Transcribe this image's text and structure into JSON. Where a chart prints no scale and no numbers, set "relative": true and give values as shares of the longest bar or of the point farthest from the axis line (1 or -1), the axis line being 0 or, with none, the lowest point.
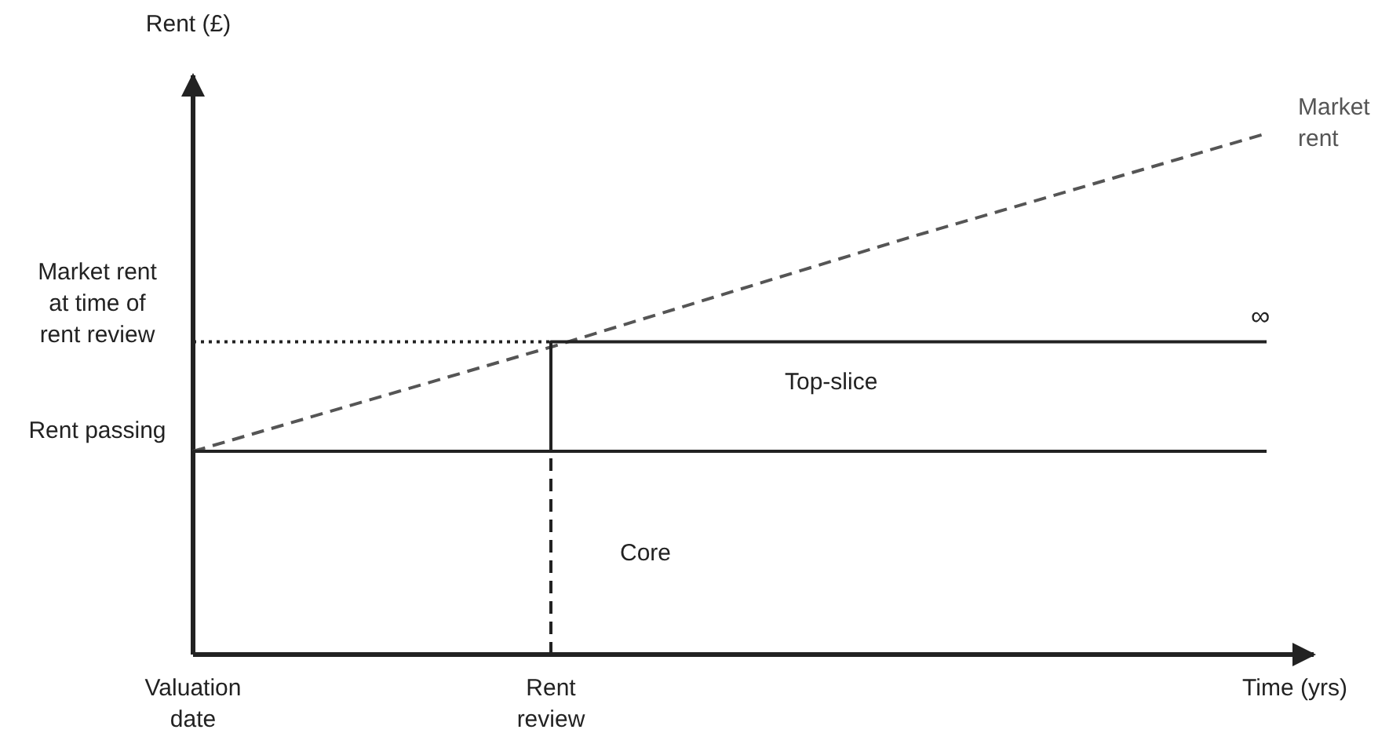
{
  "chart_data": {
    "type": "line",
    "relative": true,
    "xlabel": "Time (yrs)",
    "ylabel": "Rent (£)",
    "categories": [
      "Valuation date",
      "Rent review",
      null,
      null
    ],
    "marker": "none",
    "series": [
      {
        "name": "Market rent",
        "color": "#555555",
        "line_style": "dashed",
        "values": [
          0.39,
          0.59,
          0.8,
          1
        ]
      },
      {
        "color": "#222222",
        "line_style": "solid",
        "values": [
          null,
          0.39,
          0.39,
          0.39
        ]
      },
      {
        "type": "step",
        "color": "#222222",
        "line_style": "solid",
        "values": [
          0.39,
          0.6,
          0.6,
          0.6
        ]
      },
      {
        "color": "#222222",
        "line_style": "dotted",
        "values": [
          0.6,
          0.6,
          null,
          null
        ]
      }
    ],
    "ref_lines": [
      {
        "axis": "x",
        "value": "Rent review",
        "line_style": "dashed",
        "color": "#222222"
      }
    ],
    "annotations": [
      "Market rent at time of rent review",
      "Rent passing",
      "Top-slice",
      "Core",
      "∞"
    ]
  }
}
